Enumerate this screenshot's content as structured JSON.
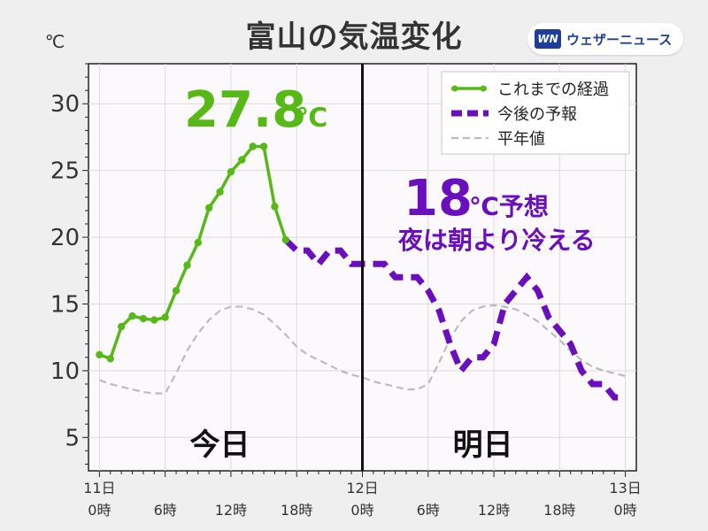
{
  "header": {
    "title": "富山の気温変化",
    "brand_mark": "WN",
    "brand_name": "ウェザーニュース"
  },
  "chart_data": {
    "type": "line",
    "unit_label": "℃",
    "ylim": [
      2.5,
      33
    ],
    "xlim": [
      -1,
      49
    ],
    "y_ticks": [
      5,
      10,
      15,
      20,
      25,
      30
    ],
    "x_ticks": [
      {
        "x": 0,
        "lines": [
          "11日",
          "0時"
        ]
      },
      {
        "x": 6,
        "lines": [
          "",
          "6時"
        ]
      },
      {
        "x": 12,
        "lines": [
          "",
          "12時"
        ]
      },
      {
        "x": 18,
        "lines": [
          "",
          "18時"
        ]
      },
      {
        "x": 24,
        "lines": [
          "12日",
          "0時"
        ]
      },
      {
        "x": 30,
        "lines": [
          "",
          "6時"
        ]
      },
      {
        "x": 36,
        "lines": [
          "",
          "12時"
        ]
      },
      {
        "x": 42,
        "lines": [
          "",
          "18時"
        ]
      },
      {
        "x": 48,
        "lines": [
          "13日",
          "0時"
        ]
      }
    ],
    "grid": true,
    "legend_position": "top-right",
    "divider_x": 24,
    "day_labels": [
      {
        "x": 11,
        "text": "今日"
      },
      {
        "x": 35,
        "text": "明日"
      }
    ],
    "colors": {
      "observed": "#57b916",
      "forecast": "#6a0fbd",
      "normal": "#bcbcbc",
      "divider": "#111111"
    },
    "series": [
      {
        "name": "これまでの経過",
        "style": "solid-markers",
        "x": [
          0,
          1,
          2,
          3,
          4,
          5,
          6,
          7,
          8,
          9,
          10,
          11,
          12,
          13,
          14,
          15,
          16,
          17
        ],
        "y": [
          11.2,
          10.9,
          13.3,
          14.1,
          13.9,
          13.8,
          14.0,
          16.0,
          17.9,
          19.6,
          22.2,
          23.4,
          24.9,
          25.8,
          26.8,
          26.8,
          22.3,
          19.8
        ]
      },
      {
        "name": "今後の予報",
        "style": "dashed-thick",
        "x": [
          17,
          18,
          19,
          20,
          21,
          22,
          23,
          24,
          25,
          26,
          27,
          28,
          29,
          30,
          31,
          32,
          33,
          34,
          35,
          36,
          37,
          38,
          39,
          40,
          41,
          42,
          43,
          44,
          45,
          46,
          47,
          48
        ],
        "y": [
          19.8,
          19.0,
          19.0,
          18.0,
          19.0,
          19.0,
          18.0,
          18.0,
          18.0,
          18.0,
          17.0,
          17.0,
          17.0,
          16.0,
          14.5,
          12.0,
          10.0,
          11.0,
          11.0,
          12.0,
          15.0,
          16.0,
          17.0,
          16.0,
          14.0,
          13.0,
          12.0,
          10.0,
          9.0,
          9.0,
          8.0,
          8.0
        ]
      },
      {
        "name": "平年値",
        "style": "dashed-thin",
        "x": [
          0,
          1,
          2,
          3,
          4,
          5,
          6,
          7,
          8,
          9,
          10,
          11,
          12,
          13,
          14,
          15,
          16,
          17,
          18,
          19,
          20,
          21,
          22,
          23,
          24,
          25,
          26,
          27,
          28,
          29,
          30,
          31,
          32,
          33,
          34,
          35,
          36,
          37,
          38,
          39,
          40,
          41,
          42,
          43,
          44,
          45,
          46,
          47,
          48
        ],
        "y": [
          9.3,
          9.0,
          8.8,
          8.6,
          8.4,
          8.3,
          8.3,
          9.8,
          11.5,
          12.8,
          13.8,
          14.5,
          14.8,
          14.8,
          14.6,
          14.2,
          13.5,
          12.7,
          11.8,
          11.2,
          10.8,
          10.4,
          10.0,
          9.7,
          9.5,
          9.2,
          9.0,
          8.8,
          8.6,
          8.6,
          9.0,
          10.6,
          12.4,
          13.7,
          14.5,
          14.8,
          14.9,
          14.8,
          14.6,
          14.2,
          13.7,
          13.0,
          12.3,
          11.5,
          10.8,
          10.3,
          10.0,
          9.8,
          9.6
        ]
      }
    ],
    "annotations": {
      "max_value": "27.8",
      "max_unit": "℃",
      "forecast_value": "18",
      "forecast_unit_text": "℃予想",
      "forecast_note": "夜は朝より冷える"
    }
  }
}
